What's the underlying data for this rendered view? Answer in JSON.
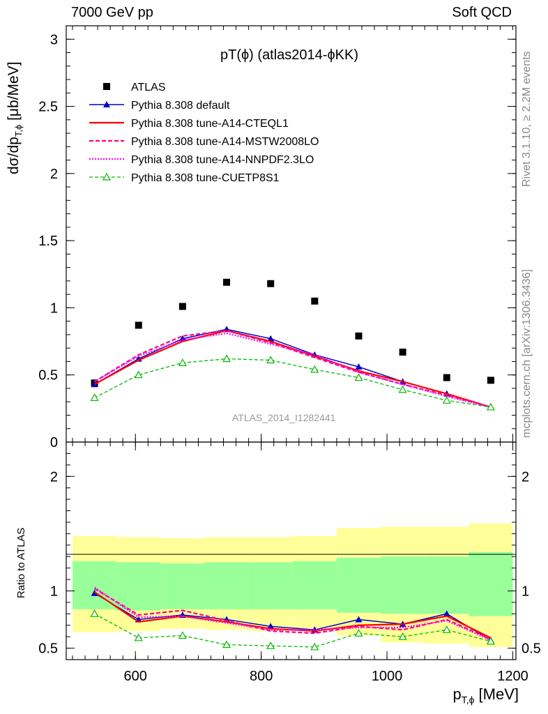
{
  "header": {
    "left": "7000 GeV pp",
    "right": "Soft QCD",
    "plot_title": "pT(ϕ) (atlas2014-ϕKK)"
  },
  "side_labels": {
    "rivet": "Rivet 3.1.10, ≥ 2.2M events",
    "mcplots": "mcplots.cern.ch [arXiv:1306.3436]"
  },
  "watermark": "ATLAS_2014_I1282441",
  "colors": {
    "atlas": "#000000",
    "default": "#0000cc",
    "cteql1": "#ff0000",
    "mstw": "#ff0088",
    "nnpdf": "#ff00ff",
    "cuetp": "#00bb00",
    "band_yellow": "#ffff99",
    "band_green": "#99ff99"
  },
  "chart_data": [
    {
      "type": "scatter",
      "panel": "main",
      "ylabel": "dσ/dp_T,ϕ [μb/MeV]",
      "xlim": [
        490,
        1205
      ],
      "ylim": [
        0,
        3.1
      ],
      "yticks": [
        0,
        0.5,
        1,
        1.5,
        2,
        2.5,
        3
      ],
      "ytick_labels": [
        "0",
        "0.5",
        "1",
        "1.5",
        "2",
        "2.5",
        "3"
      ],
      "legend_position": "top-left",
      "x": [
        535,
        605,
        675,
        745,
        815,
        885,
        955,
        1025,
        1095,
        1165
      ],
      "series": [
        {
          "name": "ATLAS",
          "style": "data",
          "values": [
            0.44,
            0.87,
            1.01,
            1.19,
            1.18,
            1.05,
            0.79,
            0.67,
            0.48,
            0.46
          ]
        },
        {
          "name": "Pythia 8.308 default",
          "style": "default",
          "values": [
            0.43,
            0.62,
            0.77,
            0.84,
            0.77,
            0.65,
            0.56,
            0.45,
            0.36,
            0.26
          ]
        },
        {
          "name": "Pythia 8.308 tune-A14-CTEQL1",
          "style": "cteql1",
          "values": [
            0.43,
            0.61,
            0.75,
            0.83,
            0.75,
            0.64,
            0.53,
            0.45,
            0.36,
            0.26
          ]
        },
        {
          "name": "Pythia 8.308 tune-A14-MSTW2008LO",
          "style": "mstw",
          "values": [
            0.45,
            0.65,
            0.79,
            0.83,
            0.74,
            0.63,
            0.52,
            0.43,
            0.35,
            0.26
          ]
        },
        {
          "name": "Pythia 8.308 tune-A14-NNPDF2.3LO",
          "style": "nnpdf",
          "values": [
            0.45,
            0.64,
            0.76,
            0.81,
            0.73,
            0.65,
            0.52,
            0.43,
            0.34,
            0.26
          ]
        },
        {
          "name": "Pythia 8.308 tune-CUETP8S1",
          "style": "cuetp",
          "values": [
            0.33,
            0.5,
            0.59,
            0.62,
            0.61,
            0.54,
            0.48,
            0.39,
            0.31,
            0.26
          ]
        }
      ]
    },
    {
      "type": "line",
      "panel": "ratio",
      "ylabel": "Ratio to ATLAS",
      "xlabel": "p_T,ϕ [MeV]",
      "xlim": [
        490,
        1205
      ],
      "ylim": [
        0.4,
        2.3
      ],
      "xticks": [
        600,
        800,
        1000,
        1200
      ],
      "xtick_labels": [
        "600",
        "800",
        "1000",
        "1200"
      ],
      "yticks": [
        0.5,
        1,
        2
      ],
      "ytick_labels": [
        "0.5",
        "1",
        "2"
      ],
      "bands": {
        "edges": [
          500,
          570,
          640,
          710,
          780,
          850,
          920,
          990,
          1060,
          1130,
          1200
        ],
        "yellow_lo": [
          0.64,
          0.65,
          0.67,
          0.66,
          0.65,
          0.65,
          0.61,
          0.55,
          0.54,
          0.51
        ],
        "yellow_hi": [
          1.48,
          1.47,
          1.46,
          1.47,
          1.47,
          1.48,
          1.55,
          1.56,
          1.56,
          1.59
        ],
        "green_lo": [
          0.84,
          0.83,
          0.84,
          0.84,
          0.84,
          0.84,
          0.81,
          0.8,
          0.8,
          0.78
        ],
        "green_hi": [
          1.26,
          1.25,
          1.24,
          1.25,
          1.25,
          1.26,
          1.29,
          1.3,
          1.3,
          1.34
        ]
      },
      "x": [
        535,
        605,
        675,
        745,
        815,
        885,
        955,
        1025,
        1095,
        1165
      ],
      "series": [
        {
          "name": "Pythia 8.308 default",
          "style": "default",
          "values": [
            0.98,
            0.75,
            0.79,
            0.75,
            0.69,
            0.66,
            0.75,
            0.71,
            0.8,
            0.57
          ]
        },
        {
          "name": "Pythia 8.308 tune-A14-CTEQL1",
          "style": "cteql1",
          "values": [
            0.99,
            0.73,
            0.78,
            0.73,
            0.67,
            0.65,
            0.7,
            0.71,
            0.78,
            0.59
          ]
        },
        {
          "name": "Pythia 8.308 tune-A14-MSTW2008LO",
          "style": "mstw",
          "values": [
            1.02,
            0.79,
            0.83,
            0.74,
            0.65,
            0.63,
            0.69,
            0.66,
            0.75,
            0.58
          ]
        },
        {
          "name": "Pythia 8.308 tune-A14-NNPDF2.3LO",
          "style": "nnpdf",
          "values": [
            1.03,
            0.77,
            0.78,
            0.72,
            0.66,
            0.66,
            0.68,
            0.68,
            0.74,
            0.57
          ]
        },
        {
          "name": "Pythia 8.308 tune-CUETP8S1",
          "style": "cuetp",
          "values": [
            0.8,
            0.59,
            0.61,
            0.53,
            0.52,
            0.51,
            0.63,
            0.6,
            0.66,
            0.56
          ]
        }
      ]
    }
  ]
}
